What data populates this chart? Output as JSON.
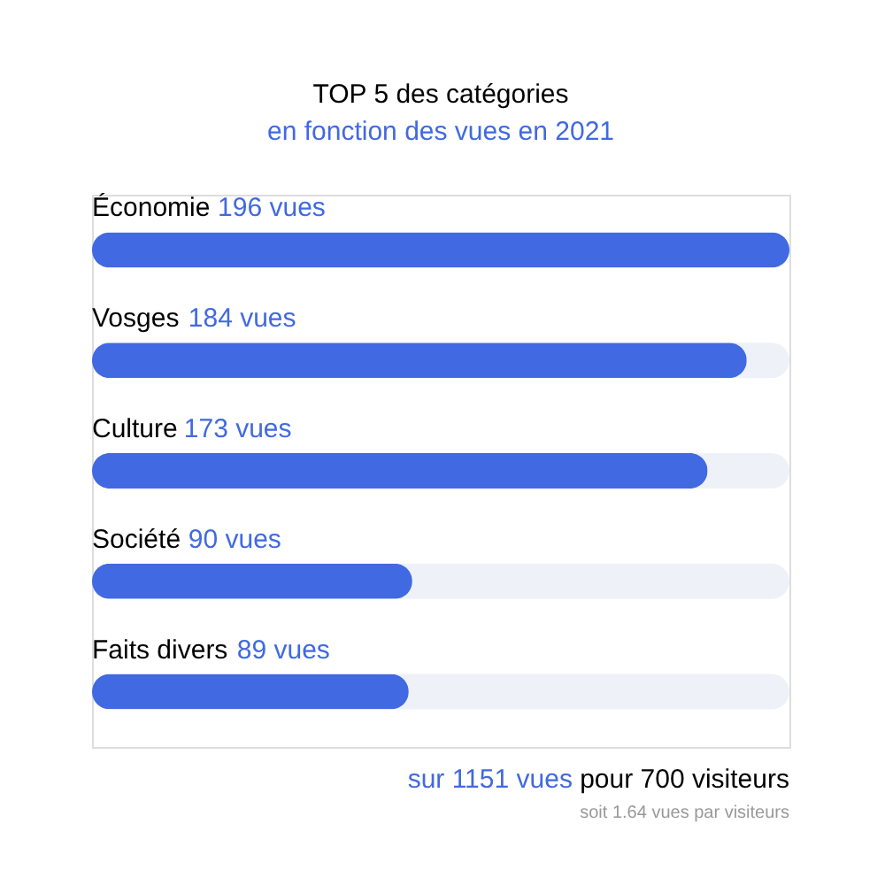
{
  "chart_data": {
    "type": "bar",
    "orientation": "horizontal",
    "title": "TOP 5 des catégories",
    "subtitle": "en fonction des vues en 2021",
    "categories": [
      "Économie",
      "Vosges",
      "Culture",
      "Société",
      "Faits divers"
    ],
    "values": [
      196,
      184,
      173,
      90,
      89
    ],
    "value_labels": [
      "196 vues",
      "184 vues",
      "173 vues",
      "90 vues",
      "89 vues"
    ],
    "color": "#4169e1",
    "annotations": [
      "sur 1151 vues",
      "pour 700 visiteurs",
      "soit 1.64 vues par visiteurs"
    ]
  }
}
